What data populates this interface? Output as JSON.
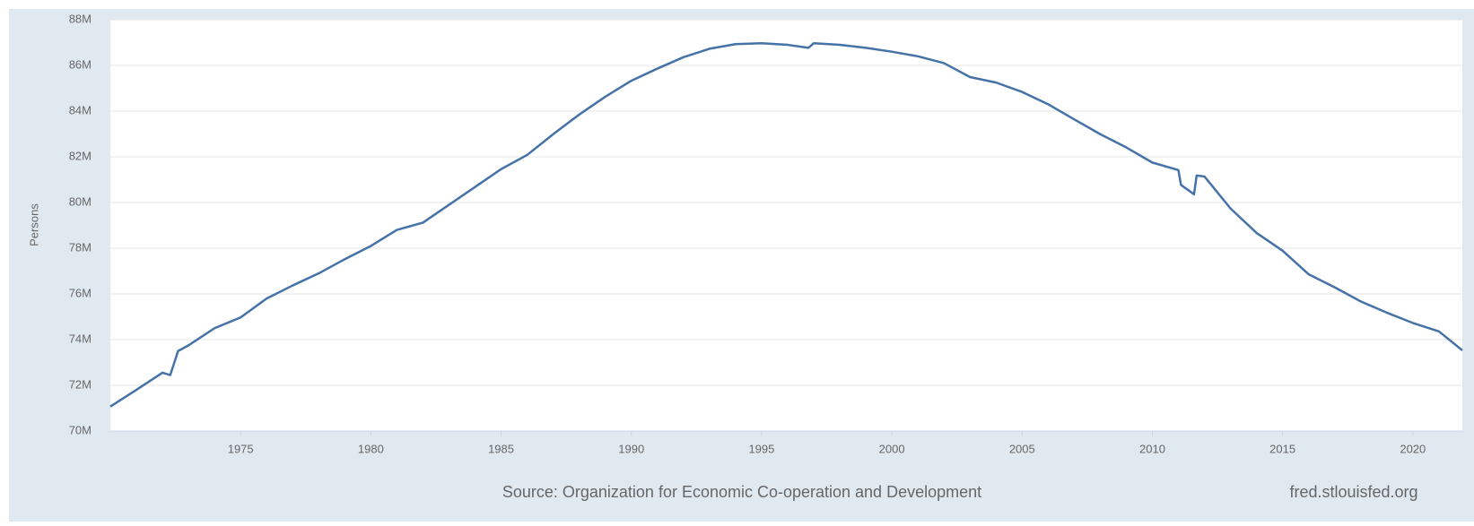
{
  "chart_data": {
    "type": "line",
    "ylabel": "Persons",
    "source": "Source: Organization for Economic Co-operation and Development",
    "credit": "fred.stlouisfed.org",
    "xlim": [
      1970,
      2021.9
    ],
    "xticks": [
      1975,
      1980,
      1985,
      1990,
      1995,
      2000,
      2005,
      2010,
      2015,
      2020
    ],
    "ylim": [
      70000000,
      88000000
    ],
    "yticks": [
      {
        "value": 70000000,
        "label": "70M"
      },
      {
        "value": 72000000,
        "label": "72M"
      },
      {
        "value": 74000000,
        "label": "74M"
      },
      {
        "value": 76000000,
        "label": "76M"
      },
      {
        "value": 78000000,
        "label": "78M"
      },
      {
        "value": 80000000,
        "label": "80M"
      },
      {
        "value": 82000000,
        "label": "82M"
      },
      {
        "value": 84000000,
        "label": "84M"
      },
      {
        "value": 86000000,
        "label": "86M"
      },
      {
        "value": 88000000,
        "label": "88M"
      }
    ],
    "grid": true,
    "series": [
      {
        "color": "#4572a7",
        "x": [
          1970,
          1971,
          1972,
          1972.3,
          1972.6,
          1973,
          1974,
          1975,
          1976,
          1977,
          1978,
          1979,
          1980,
          1981,
          1982,
          1983,
          1984,
          1985,
          1986,
          1987,
          1988,
          1989,
          1990,
          1991,
          1992,
          1993,
          1994,
          1995,
          1996,
          1996.8,
          1997,
          1998,
          1999,
          2000,
          2001,
          2002,
          2003,
          2004,
          2005,
          2006,
          2007,
          2008,
          2009,
          2010,
          2011,
          2011.1,
          2011.6,
          2011.7,
          2012,
          2013,
          2014,
          2015,
          2016,
          2017,
          2018,
          2019,
          2020,
          2021,
          2021.9
        ],
        "values": [
          71070000,
          71800000,
          72550000,
          72450000,
          73500000,
          73750000,
          74500000,
          74970000,
          75800000,
          76370000,
          76900000,
          77520000,
          78100000,
          78800000,
          79120000,
          79900000,
          80680000,
          81460000,
          82080000,
          82990000,
          83850000,
          84630000,
          85330000,
          85860000,
          86360000,
          86730000,
          86930000,
          86970000,
          86900000,
          86770000,
          86970000,
          86900000,
          86770000,
          86600000,
          86400000,
          86100000,
          85490000,
          85250000,
          84840000,
          84300000,
          83640000,
          82990000,
          82410000,
          81750000,
          81420000,
          80770000,
          80360000,
          81180000,
          81140000,
          79740000,
          78670000,
          77890000,
          76860000,
          76290000,
          75670000,
          75180000,
          74730000,
          74360000,
          73530000
        ]
      }
    ]
  }
}
